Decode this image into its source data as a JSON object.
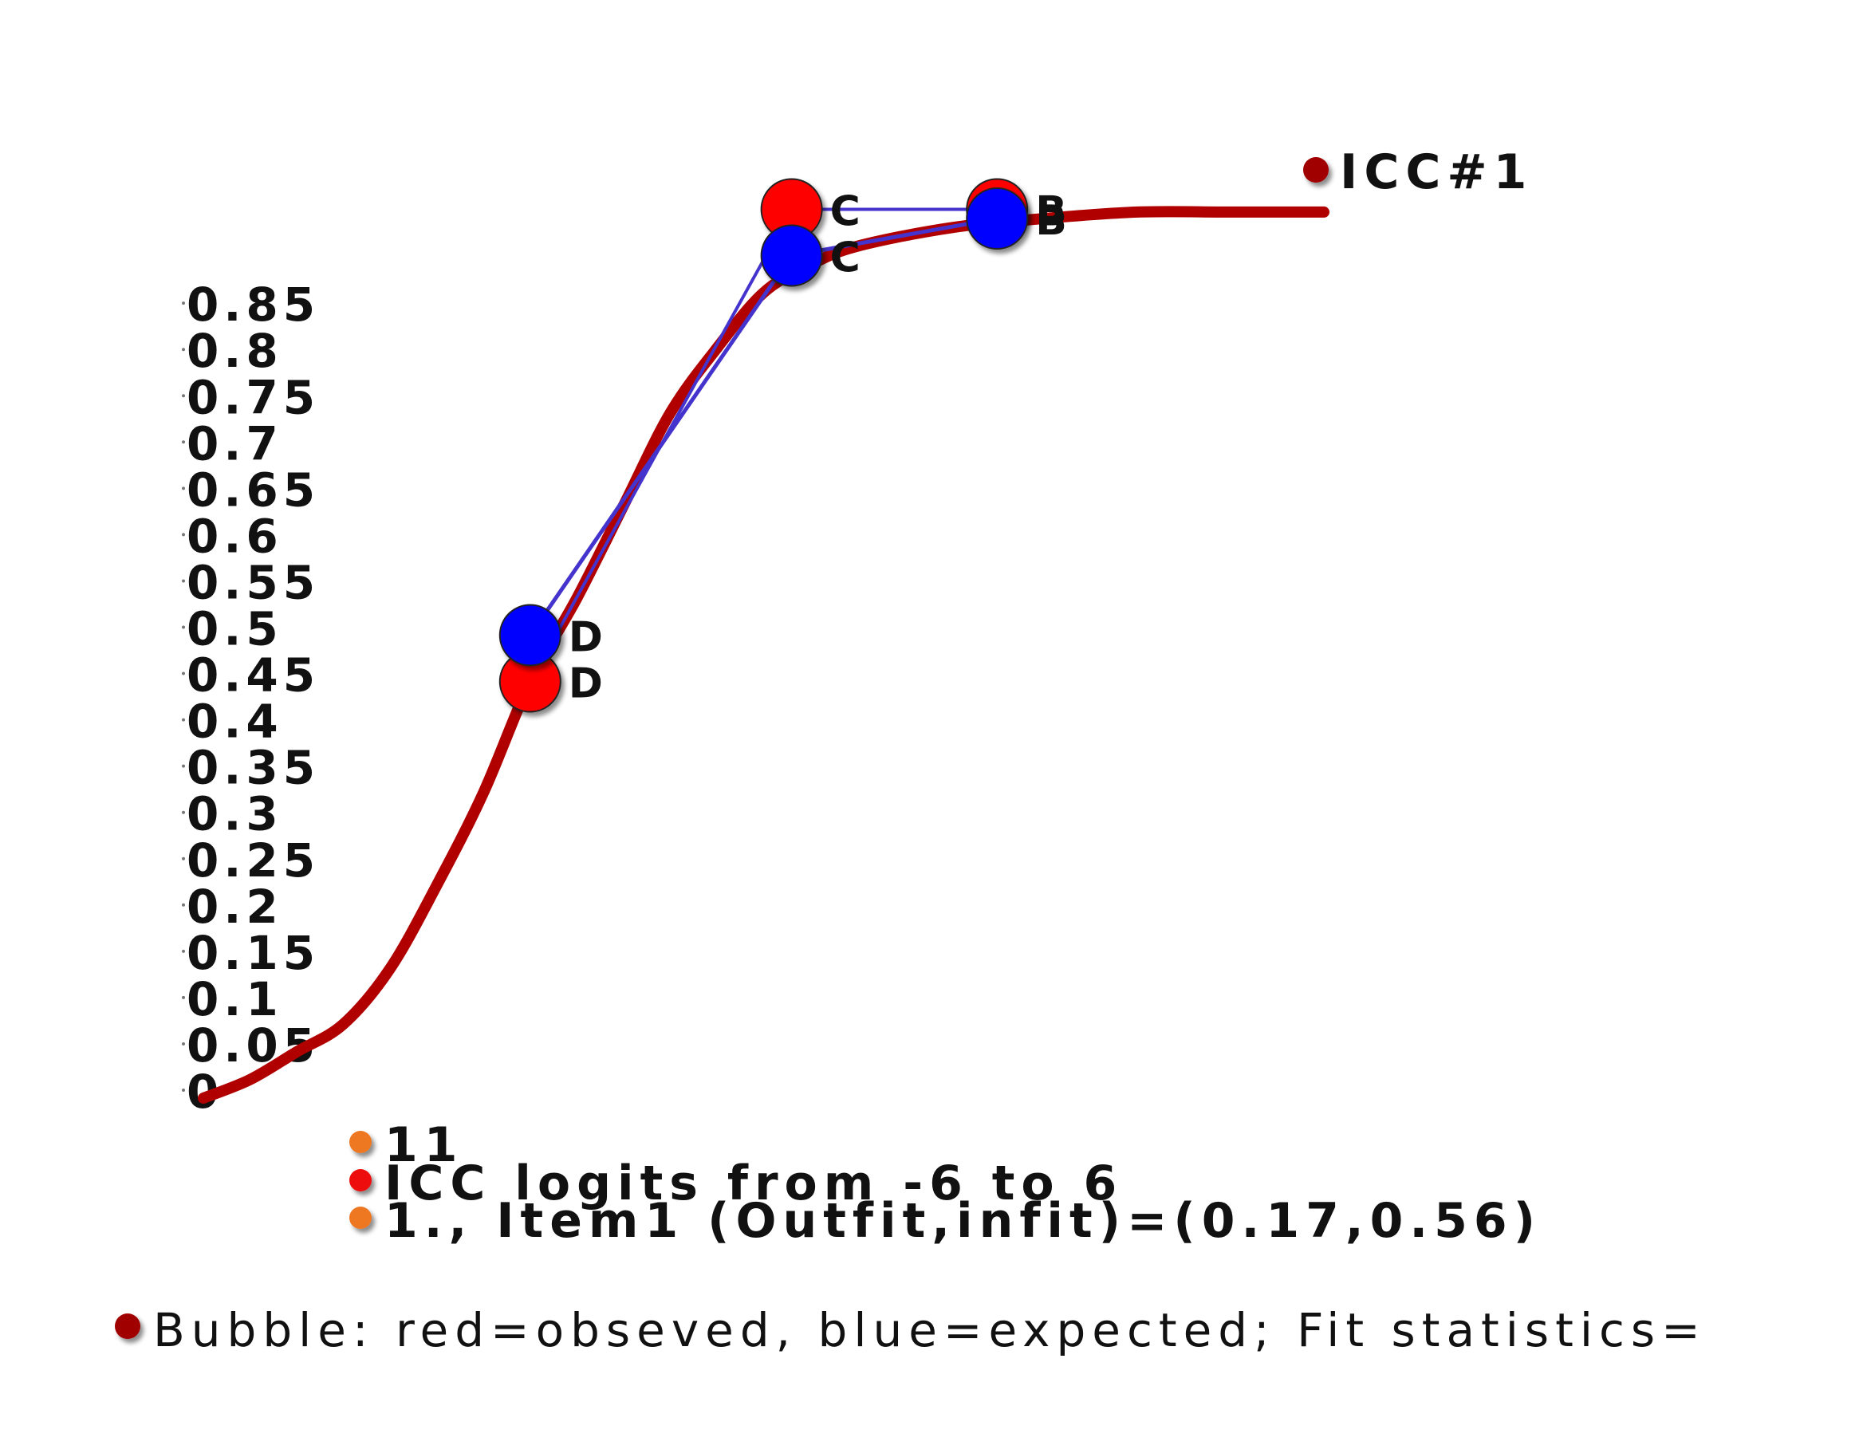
{
  "chart_data": {
    "type": "line",
    "title": "",
    "xlabel": "",
    "ylabel": "",
    "xlim": [
      -6,
      6
    ],
    "ylim": [
      0,
      1
    ],
    "y_ticks": [
      "0",
      "0.05",
      "0.1",
      "0.15",
      "0.2",
      "0.25",
      "0.3",
      "0.35",
      "0.4",
      "0.45",
      "0.5",
      "0.55",
      "0.6",
      "0.65",
      "0.7",
      "0.75",
      "0.8",
      "0.85"
    ],
    "curve": {
      "name": "ICC#1",
      "color": "#b00000",
      "x": [
        -6,
        -5.5,
        -5,
        -4.5,
        -4,
        -3.5,
        -3,
        -2.5,
        -2,
        -1.5,
        -1,
        -0.5,
        0,
        0.5,
        1,
        2,
        3,
        4,
        5,
        6
      ],
      "y": [
        0.0,
        0.02,
        0.05,
        0.08,
        0.14,
        0.23,
        0.33,
        0.45,
        0.54,
        0.64,
        0.74,
        0.81,
        0.87,
        0.9,
        0.92,
        0.94,
        0.95,
        0.957,
        0.957,
        0.957
      ]
    },
    "series": [
      {
        "name": "observed",
        "color": "#ff0000",
        "points": [
          {
            "x": -2.5,
            "y": 0.45,
            "label": "D"
          },
          {
            "x": 0.3,
            "y": 0.96,
            "label": "C"
          },
          {
            "x": 2.5,
            "y": 0.96,
            "label": "B"
          }
        ]
      },
      {
        "name": "expected",
        "color": "#0000ff",
        "points": [
          {
            "x": -2.5,
            "y": 0.5,
            "label": "D"
          },
          {
            "x": 0.3,
            "y": 0.91,
            "label": "C"
          },
          {
            "x": 2.5,
            "y": 0.95,
            "label": "B"
          }
        ]
      }
    ],
    "legend_top": {
      "label": "ICC#1",
      "color": "#a00000"
    },
    "legend_bottom": [
      {
        "label": "11",
        "color": "#ee7722"
      },
      {
        "label": "ICC logits from -6 to 6",
        "color": "#ee1111"
      },
      {
        "label": "1., Item1 (Outfit,infit)=(0.17,0.56)",
        "color": "#ee7722"
      }
    ],
    "footer": {
      "text": "Bubble: red=obseved, blue=expected; Fit statistics=",
      "color": "#a00000"
    }
  }
}
